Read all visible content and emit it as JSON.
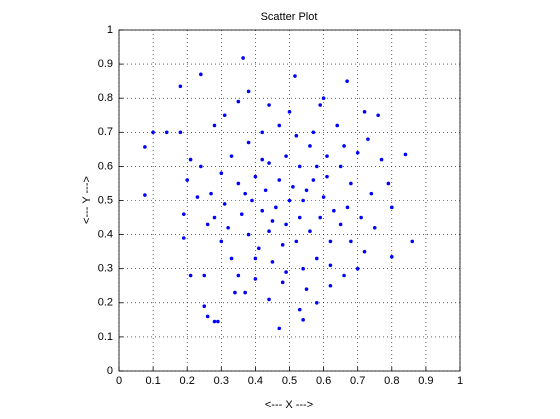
{
  "chart_data": {
    "type": "scatter",
    "title": "Scatter Plot",
    "xlabel": "<--- X --->",
    "ylabel": "<--- Y --->",
    "color": "#0000ff",
    "grid": true,
    "xlim": [
      0,
      1
    ],
    "ylim": [
      0,
      1
    ],
    "xticks": [
      0,
      0.1,
      0.2,
      0.3,
      0.4,
      0.5,
      0.6,
      0.7,
      0.8,
      0.9,
      1
    ],
    "yticks": [
      0,
      0.1,
      0.2,
      0.3,
      0.4,
      0.5,
      0.6,
      0.7,
      0.8,
      0.9,
      1
    ],
    "x": [
      0.364,
      0.516,
      0.24,
      0.18,
      0.669,
      0.1,
      0.14,
      0.18,
      0.076,
      0.84,
      0.076,
      0.86,
      0.8,
      0.25,
      0.26,
      0.28,
      0.29,
      0.47,
      0.54,
      0.34,
      0.37,
      0.21,
      0.25,
      0.19,
      0.19,
      0.2,
      0.21,
      0.28,
      0.31,
      0.35,
      0.38,
      0.44,
      0.59,
      0.6,
      0.72,
      0.76,
      0.73,
      0.77,
      0.79,
      0.8,
      0.75,
      0.72,
      0.7,
      0.66,
      0.62,
      0.58,
      0.53,
      0.44,
      0.4,
      0.33,
      0.3,
      0.28,
      0.27,
      0.3,
      0.33,
      0.38,
      0.42,
      0.47,
      0.52,
      0.56,
      0.61,
      0.65,
      0.68,
      0.67,
      0.65,
      0.62,
      0.58,
      0.54,
      0.49,
      0.45,
      0.41,
      0.38,
      0.36,
      0.37,
      0.4,
      0.44,
      0.49,
      0.53,
      0.57,
      0.6,
      0.59,
      0.56,
      0.52,
      0.48,
      0.44,
      0.42,
      0.43,
      0.47,
      0.51,
      0.54,
      0.53,
      0.49,
      0.46,
      0.5,
      0.55,
      0.45,
      0.39,
      0.61,
      0.63,
      0.35,
      0.31,
      0.26,
      0.24,
      0.23,
      0.7,
      0.74,
      0.71,
      0.68,
      0.48,
      0.55,
      0.35,
      0.32,
      0.57,
      0.64,
      0.5,
      0.42,
      0.66,
      0.58,
      0.4,
      0.62
    ],
    "values": [
      0.918,
      0.865,
      0.87,
      0.835,
      0.85,
      0.7,
      0.7,
      0.7,
      0.657,
      0.635,
      0.516,
      0.38,
      0.335,
      0.19,
      0.16,
      0.145,
      0.145,
      0.125,
      0.15,
      0.23,
      0.23,
      0.28,
      0.28,
      0.39,
      0.46,
      0.56,
      0.62,
      0.72,
      0.75,
      0.79,
      0.82,
      0.78,
      0.78,
      0.8,
      0.76,
      0.75,
      0.68,
      0.62,
      0.55,
      0.48,
      0.42,
      0.35,
      0.3,
      0.28,
      0.25,
      0.2,
      0.18,
      0.21,
      0.27,
      0.33,
      0.38,
      0.45,
      0.52,
      0.58,
      0.63,
      0.67,
      0.7,
      0.72,
      0.69,
      0.66,
      0.63,
      0.6,
      0.55,
      0.48,
      0.43,
      0.38,
      0.33,
      0.3,
      0.29,
      0.32,
      0.36,
      0.4,
      0.46,
      0.52,
      0.57,
      0.61,
      0.63,
      0.6,
      0.56,
      0.51,
      0.45,
      0.41,
      0.38,
      0.37,
      0.41,
      0.47,
      0.53,
      0.56,
      0.54,
      0.5,
      0.45,
      0.43,
      0.48,
      0.5,
      0.53,
      0.44,
      0.5,
      0.57,
      0.47,
      0.55,
      0.49,
      0.43,
      0.6,
      0.51,
      0.64,
      0.52,
      0.45,
      0.38,
      0.26,
      0.24,
      0.28,
      0.42,
      0.7,
      0.72,
      0.76,
      0.62,
      0.66,
      0.6,
      0.33,
      0.31
    ]
  }
}
